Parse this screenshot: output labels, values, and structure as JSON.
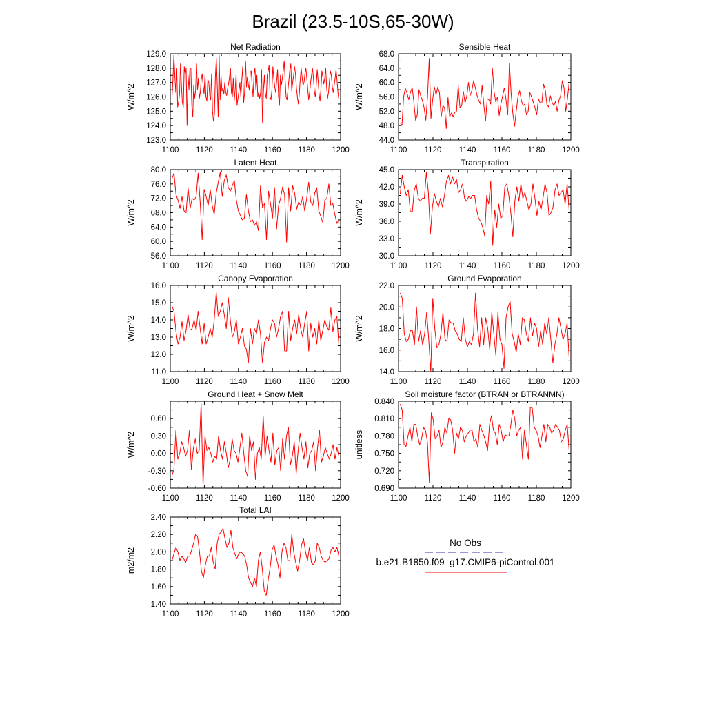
{
  "title": "Brazil (23.5-10S,65-30W)",
  "colors": {
    "series": "#ff0000",
    "obs": "#3333aa",
    "axis": "#000000"
  },
  "legend": {
    "obs_label": "No Obs",
    "model_label": "b.e21.B1850.f09_g17.CMIP6-piControl.001"
  },
  "chart_data": [
    {
      "type": "line",
      "title": "Net Radiation",
      "ylabel": "W/m^2",
      "xlim": [
        1100,
        1200
      ],
      "ylim": [
        123.0,
        129.0
      ],
      "xticks": [
        "1100",
        "1120",
        "1140",
        "1160",
        "1180",
        "1200"
      ],
      "yticks": [
        "123.0",
        "124.0",
        "125.0",
        "126.0",
        "127.0",
        "128.0",
        "129.0"
      ],
      "x_start": 1101,
      "values": [
        126.0,
        127.2,
        128.9,
        127.5,
        126.3,
        128.0,
        125.3,
        125.6,
        126.2,
        128.3,
        126.8,
        125.6,
        125.3,
        128.1,
        127.6,
        128.0,
        124.0,
        127.5,
        126.5,
        128.0,
        128.0,
        125.4,
        124.6,
        126.8,
        125.9,
        126.4,
        128.3,
        126.5,
        127.3,
        125.9,
        126.3,
        127.2,
        127.6,
        126.8,
        126.2,
        127.5,
        126.0,
        125.7,
        127.2,
        127.0,
        126.1,
        125.8,
        127.6,
        125.0,
        124.3,
        124.8,
        127.4,
        128.7,
        126.8,
        124.6,
        128.9,
        125.8,
        127.5,
        126.4,
        126.6,
        126.2,
        127.0,
        126.3,
        126.1,
        126.6,
        126.9,
        127.4,
        128.0,
        126.3,
        126.0,
        127.3,
        125.7,
        126.5,
        127.6,
        125.4,
        125.9,
        126.4,
        127.0,
        126.0,
        127.1,
        128.1,
        125.6,
        126.3,
        128.5,
        126.7,
        127.4,
        126.8,
        126.5,
        127.7,
        127.8,
        126.8,
        126.0,
        127.5,
        128.0,
        126.5,
        127.5,
        126.0,
        126.3,
        125.9,
        126.3,
        127.9,
        124.2,
        126.4,
        127.5,
        126.2,
        125.9,
        127.5,
        127.8,
        128.2,
        126.0,
        125.8,
        126.5,
        128.1,
        127.3,
        126.7,
        126.3,
        127.1,
        127.9,
        126.0,
        125.4,
        127.5,
        126.8,
        127.3,
        127.8,
        128.5,
        127.2,
        126.0,
        125.8,
        126.5,
        127.2,
        127.9,
        128.3,
        126.4,
        127.0,
        127.5,
        128.1,
        127.6,
        126.6,
        126.0,
        125.5,
        126.2,
        127.2,
        128.0,
        127.4,
        126.8,
        127.0,
        127.6,
        128.0,
        127.3,
        126.5,
        125.8,
        126.3,
        127.0,
        127.5,
        128.0,
        127.3,
        126.4,
        126.0,
        126.8,
        127.9,
        127.1,
        126.2,
        125.7,
        126.6,
        127.8,
        127.4,
        126.9,
        127.3,
        128.0,
        126.7,
        125.9,
        126.3,
        127.1,
        127.8,
        127.5,
        126.7,
        126.3,
        126.8,
        127.3,
        127.9,
        127.2,
        126.3,
        125.8
      ]
    },
    {
      "type": "line",
      "title": "Sensible Heat",
      "ylabel": "W/m^2",
      "xlim": [
        1100,
        1200
      ],
      "ylim": [
        44.0,
        68.0
      ],
      "xticks": [
        "1100",
        "1120",
        "1140",
        "1160",
        "1180",
        "1200"
      ],
      "yticks": [
        "44.0",
        "48.0",
        "52.0",
        "56.0",
        "60.0",
        "64.0",
        "68.0"
      ],
      "x_start": 1101,
      "values": [
        48.8,
        48.0,
        56.0,
        58.4,
        57.0,
        55.2,
        57.3,
        58.6,
        54.6,
        49.5,
        51.0,
        58.0,
        56.3,
        55.0,
        53.0,
        49.5,
        56.0,
        66.7,
        50.0,
        55.2,
        58.8,
        56.5,
        58.7,
        57.2,
        50.5,
        53.5,
        53.0,
        47.2,
        55.8,
        50.5,
        51.5,
        50.5,
        51.7,
        52.0,
        59.2,
        53.0,
        53.5,
        57.5,
        54.3,
        56.2,
        60.0,
        56.4,
        57.8,
        60.5,
        58.6,
        56.5,
        55.0,
        54.0,
        59.2,
        53.8,
        49.3,
        55.5,
        55.2,
        54.0,
        64.0,
        57.5,
        54.6,
        56.0,
        50.8,
        54.0,
        56.2,
        58.5,
        55.3,
        51.0,
        65.3,
        57.0,
        51.4,
        47.8,
        52.0,
        56.0,
        57.7,
        55.0,
        53.5,
        54.0,
        51.0,
        52.0,
        57.2,
        56.0,
        54.5,
        53.0,
        51.0,
        55.5,
        54.3,
        54.3,
        59.5,
        58.0,
        53.8,
        53.2,
        56.3,
        54.5,
        53.5,
        54.7,
        52.0,
        55.0,
        56.3,
        60.5,
        58.5,
        52.0,
        55.5,
        60.0
      ]
    },
    {
      "type": "line",
      "title": "Latent Heat",
      "ylabel": "W/m^2",
      "xlim": [
        1100,
        1200
      ],
      "ylim": [
        56.0,
        80.0
      ],
      "xticks": [
        "1100",
        "1120",
        "1140",
        "1160",
        "1180",
        "1200"
      ],
      "yticks": [
        "56.0",
        "60.0",
        "64.0",
        "68.0",
        "72.0",
        "76.0",
        "80.0"
      ],
      "x_start": 1101,
      "values": [
        77.5,
        79.0,
        73.0,
        71.5,
        69.2,
        72.5,
        68.5,
        68.0,
        75.0,
        69.2,
        72.0,
        71.5,
        72.5,
        79.0,
        71.0,
        60.5,
        74.5,
        72.5,
        70.0,
        74.5,
        70.0,
        67.5,
        73.5,
        76.5,
        79.3,
        72.5,
        77.0,
        78.5,
        75.0,
        74.0,
        75.5,
        77.0,
        71.5,
        68.5,
        67.3,
        66.0,
        66.5,
        73.0,
        68.5,
        65.5,
        66.0,
        64.5,
        65.5,
        63.0,
        75.5,
        69.5,
        70.5,
        60.5,
        74.0,
        70.5,
        66.5,
        75.0,
        63.5,
        70.0,
        72.0,
        75.2,
        73.0,
        59.8,
        75.0,
        68.5,
        75.5,
        73.5,
        69.0,
        71.0,
        70.0,
        72.5,
        68.5,
        72.0,
        76.5,
        71.0,
        70.0,
        73.5,
        75.0,
        68.5,
        67.0,
        65.2,
        71.5,
        72.0,
        76.0,
        70.0,
        70.5,
        67.5,
        65.0,
        66.0
      ]
    },
    {
      "type": "line",
      "title": "Transpiration",
      "ylabel": "W/m^2",
      "xlim": [
        1100,
        1200
      ],
      "ylim": [
        30.0,
        45.0
      ],
      "xticks": [
        "1100",
        "1120",
        "1140",
        "1160",
        "1180",
        "1200"
      ],
      "yticks": [
        "30.0",
        "33.0",
        "36.0",
        "39.0",
        "42.0",
        "45.0"
      ],
      "x_start": 1101,
      "values": [
        40.8,
        44.0,
        42.0,
        40.5,
        41.5,
        37.8,
        37.6,
        41.5,
        42.5,
        40.0,
        39.5,
        40.0,
        40.0,
        44.5,
        41.0,
        33.8,
        38.5,
        40.8,
        39.5,
        38.5,
        40.0,
        38.5,
        40.5,
        43.0,
        44.0,
        42.5,
        43.8,
        42.5,
        43.3,
        41.0,
        41.5,
        42.5,
        40.0,
        39.5,
        40.3,
        40.0,
        40.5,
        40.5,
        38.0,
        36.5,
        36.0,
        35.0,
        33.5,
        40.5,
        39.0,
        43.0,
        31.8,
        38.0,
        35.0,
        39.0,
        36.5,
        37.0,
        42.0,
        42.5,
        40.5,
        37.5,
        33.3,
        39.5,
        42.0,
        39.5,
        42.5,
        40.0,
        41.0,
        39.5,
        38.0,
        39.0,
        42.5,
        40.0,
        37.0,
        39.5,
        38.0,
        40.0,
        42.5,
        41.0,
        37.0,
        37.5,
        38.5,
        41.5,
        42.5,
        40.5,
        41.0,
        41.5,
        39.0,
        42.5,
        38.0
      ]
    },
    {
      "type": "line",
      "title": "Canopy Evaporation",
      "ylabel": "W/m^2",
      "xlim": [
        1100,
        1200
      ],
      "ylim": [
        11.0,
        16.0
      ],
      "xticks": [
        "1100",
        "1120",
        "1140",
        "1160",
        "1180",
        "1200"
      ],
      "yticks": [
        "11.0",
        "12.0",
        "13.0",
        "14.0",
        "15.0",
        "16.0"
      ],
      "x_start": 1101,
      "values": [
        14.8,
        14.5,
        13.3,
        12.6,
        13.0,
        13.9,
        12.8,
        13.4,
        14.3,
        13.4,
        13.5,
        14.0,
        13.4,
        14.5,
        13.5,
        12.6,
        13.8,
        12.6,
        13.0,
        13.5,
        13.0,
        14.0,
        15.6,
        14.2,
        14.5,
        15.0,
        14.3,
        13.5,
        15.3,
        14.0,
        13.0,
        13.3,
        14.0,
        12.6,
        13.0,
        13.5,
        12.5,
        12.3,
        11.5,
        13.5,
        12.6,
        13.5,
        13.2,
        14.0,
        13.2,
        11.5,
        12.7,
        13.0,
        12.8,
        13.5,
        14.0,
        13.8,
        13.0,
        13.5,
        14.2,
        14.5,
        12.2,
        12.2,
        14.5,
        12.8,
        13.5,
        14.0,
        13.2,
        14.3,
        13.5,
        13.0,
        13.8,
        14.5,
        12.2,
        13.8,
        13.0,
        13.5,
        12.6,
        14.0,
        12.8,
        13.4,
        14.0,
        13.6,
        13.4,
        14.7,
        13.3,
        14.0,
        14.2,
        12.5
      ]
    },
    {
      "type": "line",
      "title": "Ground Evaporation",
      "ylabel": "W/m^2",
      "xlim": [
        1100,
        1200
      ],
      "ylim": [
        14.0,
        22.0
      ],
      "xticks": [
        "1100",
        "1120",
        "1140",
        "1160",
        "1180",
        "1200"
      ],
      "yticks": [
        "14.0",
        "16.0",
        "18.0",
        "20.0",
        "22.0"
      ],
      "x_start": 1101,
      "values": [
        21.3,
        20.8,
        17.5,
        16.8,
        17.0,
        17.8,
        17.8,
        16.5,
        20.0,
        16.8,
        17.8,
        16.5,
        17.5,
        19.5,
        17.0,
        14.0,
        20.8,
        18.0,
        16.2,
        16.5,
        17.5,
        19.5,
        17.0,
        16.8,
        18.8,
        18.5,
        18.5,
        17.8,
        17.5,
        17.0,
        16.8,
        19.0,
        17.0,
        16.3,
        16.8,
        16.5,
        17.5,
        21.3,
        18.0,
        16.3,
        19.0,
        16.5,
        19.0,
        18.0,
        16.0,
        19.5,
        17.5,
        15.5,
        19.5,
        17.0,
        16.5,
        14.3,
        19.0,
        20.0,
        20.5,
        17.5,
        16.8,
        15.8,
        17.5,
        16.5,
        19.0,
        18.8,
        17.5,
        16.8,
        19.0,
        17.3,
        18.5,
        18.0,
        16.3,
        17.8,
        16.5,
        18.5,
        17.5,
        19.0,
        17.0,
        14.8,
        16.5,
        17.5,
        19.0,
        18.0,
        17.0,
        17.5,
        18.5,
        15.3
      ]
    },
    {
      "type": "line",
      "title": "Ground Heat + Snow Melt",
      "ylabel": "W/m^2",
      "xlim": [
        1100,
        1200
      ],
      "ylim": [
        -0.6,
        0.9
      ],
      "xticks": [
        "1100",
        "1120",
        "1140",
        "1160",
        "1180",
        "1200"
      ],
      "yticks": [
        "-0.60",
        "-0.30",
        "0.00",
        "0.30",
        "0.60"
      ],
      "yticks_values": [
        -0.6,
        -0.3,
        0.0,
        0.3,
        0.6
      ],
      "x_start": 1101,
      "values": [
        -0.38,
        -0.28,
        0.4,
        -0.1,
        0.0,
        0.2,
        0.1,
        -0.05,
        0.05,
        0.4,
        -0.28,
        0.08,
        0.25,
        0.0,
        0.05,
        0.87,
        -0.55,
        0.3,
        0.05,
        0.1,
        0.0,
        -0.15,
        -0.05,
        -0.1,
        0.3,
        0.05,
        -0.1,
        0.2,
        0.0,
        -0.25,
        -0.1,
        0.25,
        0.05,
        0.0,
        -0.15,
        0.1,
        0.35,
        0.0,
        -0.3,
        -0.4,
        0.3,
        0.05,
        0.2,
        -0.45,
        0.0,
        0.1,
        -0.1,
        0.65,
        -0.05,
        0.3,
        0.05,
        -0.15,
        0.35,
        -0.2,
        0.05,
        0.1,
        -0.3,
        0.25,
        -0.1,
        0.3,
        0.45,
        -0.2,
        -0.05,
        0.2,
        -0.35,
        0.05,
        0.35,
        0.1,
        -0.1,
        0.2,
        -0.25,
        0.0,
        0.05,
        0.2,
        -0.3,
        0.1,
        0.4,
        -0.15,
        -0.05,
        0.1,
        0.0,
        -0.1,
        0.0,
        0.15,
        -0.1,
        0.1,
        -0.05
      ]
    },
    {
      "type": "line",
      "title": "Soil moisture factor (BTRAN or BTRANMN)",
      "ylabel": "unitless",
      "xlim": [
        1100,
        1200
      ],
      "ylim": [
        0.69,
        0.84
      ],
      "xticks": [
        "1100",
        "1120",
        "1140",
        "1160",
        "1180",
        "1200"
      ],
      "yticks": [
        "0.690",
        "0.720",
        "0.750",
        "0.780",
        "0.810",
        "0.840"
      ],
      "yticks_values": [
        0.69,
        0.72,
        0.75,
        0.78,
        0.81,
        0.84
      ],
      "x_start": 1101,
      "values": [
        0.835,
        0.825,
        0.765,
        0.762,
        0.78,
        0.795,
        0.77,
        0.8,
        0.8,
        0.78,
        0.765,
        0.775,
        0.795,
        0.79,
        0.77,
        0.7,
        0.82,
        0.808,
        0.775,
        0.78,
        0.79,
        0.76,
        0.77,
        0.795,
        0.785,
        0.81,
        0.808,
        0.79,
        0.75,
        0.785,
        0.775,
        0.795,
        0.79,
        0.77,
        0.78,
        0.785,
        0.79,
        0.79,
        0.77,
        0.775,
        0.76,
        0.8,
        0.79,
        0.782,
        0.77,
        0.755,
        0.8,
        0.815,
        0.79,
        0.785,
        0.765,
        0.8,
        0.79,
        0.77,
        0.782,
        0.78,
        0.78,
        0.8,
        0.825,
        0.81,
        0.78,
        0.79,
        0.795,
        0.74,
        0.79,
        0.765,
        0.74,
        0.83,
        0.828,
        0.795,
        0.79,
        0.78,
        0.76,
        0.78,
        0.8,
        0.77,
        0.8,
        0.795,
        0.785,
        0.79,
        0.8,
        0.795,
        0.79,
        0.77,
        0.775,
        0.79,
        0.8,
        0.755
      ]
    },
    {
      "type": "line",
      "title": "Total LAI",
      "ylabel": "m2/m2",
      "xlim": [
        1100,
        1200
      ],
      "ylim": [
        1.4,
        2.4
      ],
      "xticks": [
        "1100",
        "1120",
        "1140",
        "1160",
        "1180",
        "1200"
      ],
      "yticks": [
        "1.40",
        "1.60",
        "1.80",
        "2.00",
        "2.20",
        "2.40"
      ],
      "yticks_values": [
        1.4,
        1.6,
        1.8,
        2.0,
        2.2,
        2.4
      ],
      "x_start": 1101,
      "values": [
        1.9,
        1.98,
        2.05,
        2.0,
        1.9,
        1.95,
        1.92,
        1.88,
        1.95,
        1.95,
        2.02,
        2.1,
        2.2,
        2.18,
        2.0,
        1.78,
        1.7,
        1.85,
        1.95,
        1.95,
        2.05,
        1.88,
        1.8,
        2.1,
        2.2,
        2.23,
        2.27,
        2.15,
        2.05,
        2.1,
        2.25,
        2.05,
        1.98,
        1.92,
        1.98,
        2.0,
        1.98,
        1.95,
        1.85,
        1.7,
        1.65,
        1.6,
        1.7,
        1.6,
        1.9,
        2.0,
        1.8,
        1.55,
        1.5,
        1.68,
        1.82,
        2.02,
        2.08,
        1.95,
        1.85,
        1.7,
        2.0,
        2.1,
        2.05,
        1.9,
        1.9,
        2.2,
        2.0,
        1.88,
        1.78,
        1.9,
        2.08,
        2.15,
        2.0,
        1.9,
        2.05,
        1.88,
        1.85,
        1.9,
        2.1,
        2.05,
        1.95,
        1.9,
        1.88,
        1.9,
        1.92,
        2.02,
        2.05,
        2.0,
        2.05,
        1.95
      ]
    }
  ]
}
